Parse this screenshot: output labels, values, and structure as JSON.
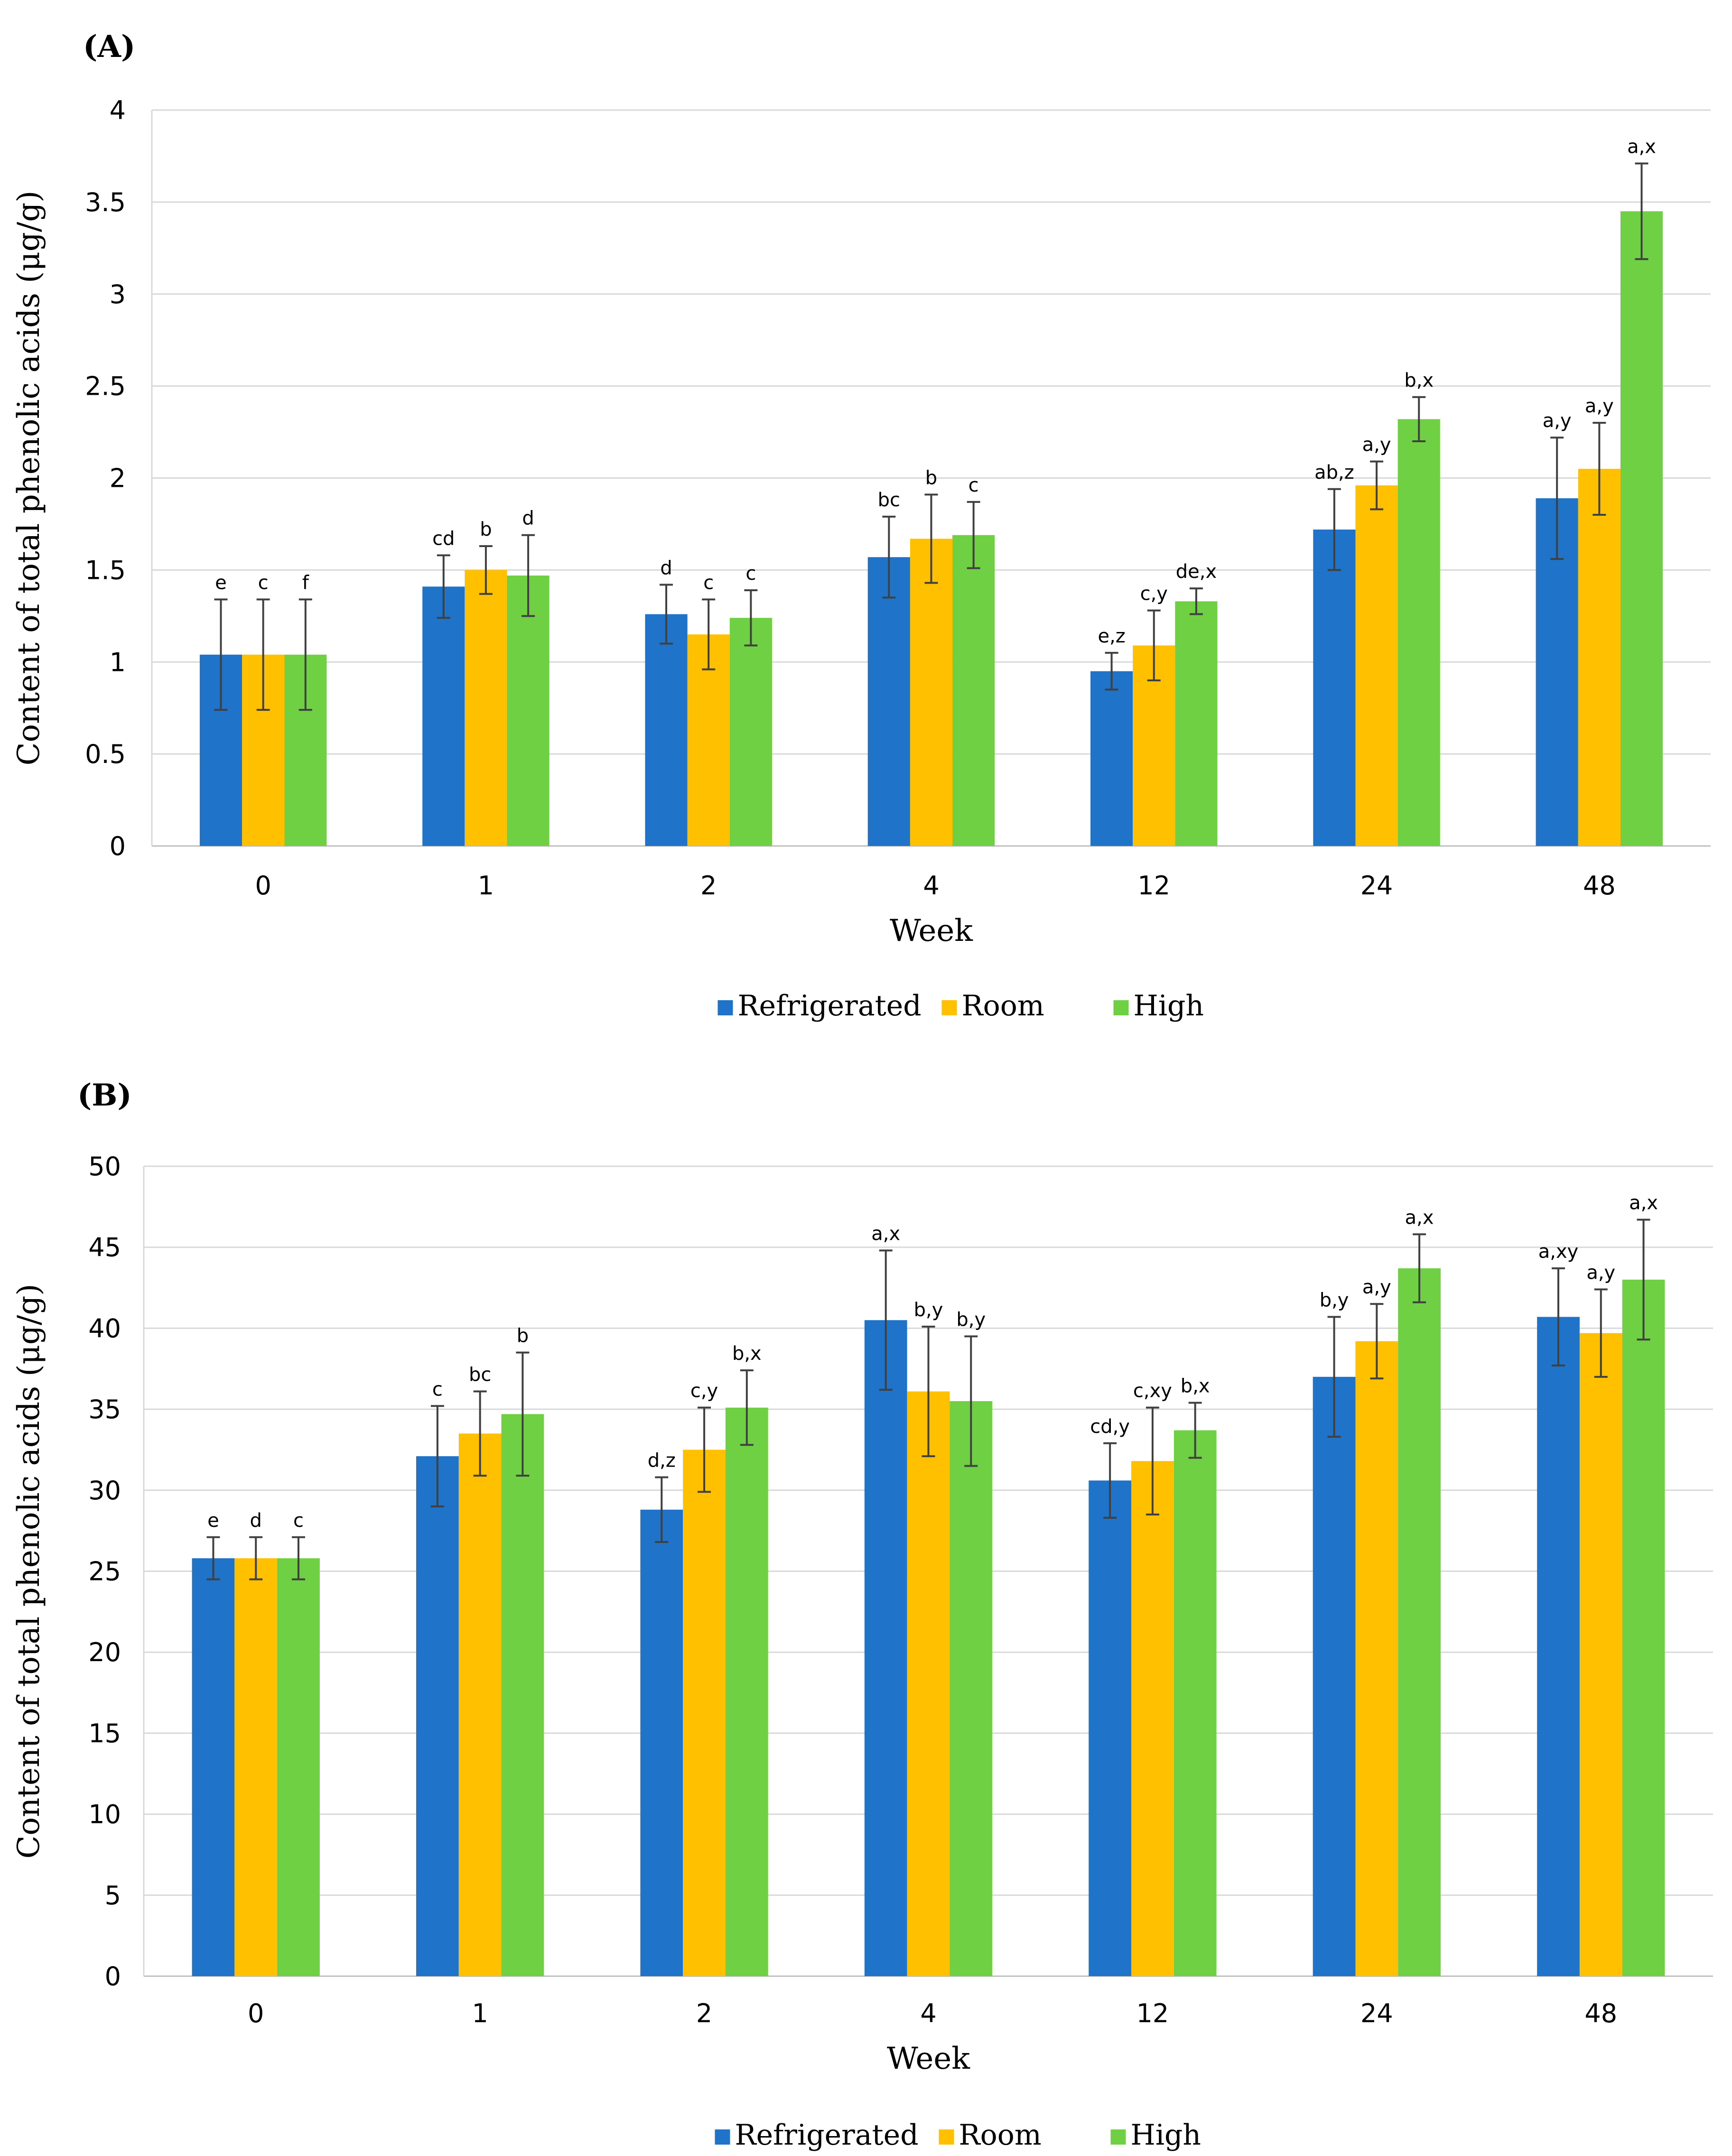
{
  "chart_data": [
    {
      "panel": "(A)",
      "type": "bar",
      "xlabel": "Week",
      "ylabel": "Content of total phenolic acids (μg/g)",
      "ylim": [
        0,
        4
      ],
      "yticks": [
        "0",
        "0.5",
        "1",
        "1.5",
        "2",
        "2.5",
        "3",
        "3.5",
        "4"
      ],
      "categories": [
        "0",
        "1",
        "2",
        "4",
        "12",
        "24",
        "48"
      ],
      "grid": true,
      "legend_position": "bottom",
      "series": [
        {
          "name": "Refrigerated",
          "color": "#1f73c8",
          "values": [
            1.04,
            1.41,
            1.26,
            1.57,
            0.95,
            1.72,
            1.89
          ],
          "errors": [
            0.3,
            0.17,
            0.16,
            0.22,
            0.1,
            0.22,
            0.33
          ],
          "labels": [
            "e",
            "cd",
            "d",
            "bc",
            "e,z",
            "ab,z",
            "a,y"
          ]
        },
        {
          "name": "Room",
          "color": "#ffc000",
          "values": [
            1.04,
            1.5,
            1.15,
            1.67,
            1.09,
            1.96,
            2.05
          ],
          "errors": [
            0.3,
            0.13,
            0.19,
            0.24,
            0.19,
            0.13,
            0.25
          ],
          "labels": [
            "c",
            "b",
            "c",
            "b",
            "c,y",
            "a,y",
            "a,y"
          ]
        },
        {
          "name": "High",
          "color": "#70d044",
          "values": [
            1.04,
            1.47,
            1.24,
            1.69,
            1.33,
            2.32,
            3.45
          ],
          "errors": [
            0.3,
            0.22,
            0.15,
            0.18,
            0.07,
            0.12,
            0.26
          ],
          "labels": [
            "f",
            "d",
            "c",
            "c",
            "de,x",
            "b,x",
            "a,x"
          ]
        }
      ]
    },
    {
      "panel": "(B)",
      "type": "bar",
      "xlabel": "Week",
      "ylabel": "Content of total phenolic acids (μg/g)",
      "ylim": [
        0,
        50
      ],
      "yticks": [
        "0",
        "5",
        "10",
        "15",
        "20",
        "25",
        "30",
        "35",
        "40",
        "45",
        "50"
      ],
      "categories": [
        "0",
        "1",
        "2",
        "4",
        "12",
        "24",
        "48"
      ],
      "grid": true,
      "legend_position": "bottom",
      "series": [
        {
          "name": "Refrigerated",
          "color": "#1f73c8",
          "values": [
            25.8,
            32.1,
            28.8,
            40.5,
            30.6,
            37.0,
            40.7
          ],
          "errors": [
            1.3,
            3.1,
            2.0,
            4.3,
            2.3,
            3.7,
            3.0
          ],
          "labels": [
            "e",
            "c",
            "d,z",
            "a,x",
            "cd,y",
            "b,y",
            "a,xy"
          ]
        },
        {
          "name": "Room",
          "color": "#ffc000",
          "values": [
            25.8,
            33.5,
            32.5,
            36.1,
            31.8,
            39.2,
            39.7
          ],
          "errors": [
            1.3,
            2.6,
            2.6,
            4.0,
            3.3,
            2.3,
            2.7
          ],
          "labels": [
            "d",
            "bc",
            "c,y",
            "b,y",
            "c,xy",
            "a,y",
            "a,y"
          ]
        },
        {
          "name": "High",
          "color": "#70d044",
          "values": [
            25.8,
            34.7,
            35.1,
            35.5,
            33.7,
            43.7,
            43.0
          ],
          "errors": [
            1.3,
            3.8,
            2.3,
            4.0,
            1.7,
            2.1,
            3.7
          ],
          "labels": [
            "c",
            "b",
            "b,x",
            "b,y",
            "b,x",
            "a,x",
            "a,x"
          ]
        }
      ]
    }
  ]
}
